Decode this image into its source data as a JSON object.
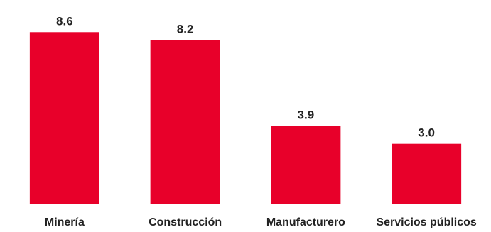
{
  "chart_data": {
    "type": "bar",
    "categories": [
      "Minería",
      "Construcción",
      "Manufacturero",
      "Servicios públicos"
    ],
    "values": [
      8.6,
      8.2,
      3.9,
      3.0
    ],
    "data_labels": [
      "8.6",
      "8.2",
      "3.9",
      "3.0"
    ],
    "title": "",
    "xlabel": "",
    "ylabel": "",
    "ylim": [
      0,
      9.5
    ],
    "grid": false,
    "legend": "none",
    "colors": {
      "bar": "#e8002a",
      "axis": "#c8c8c8",
      "text": "#222222"
    }
  }
}
